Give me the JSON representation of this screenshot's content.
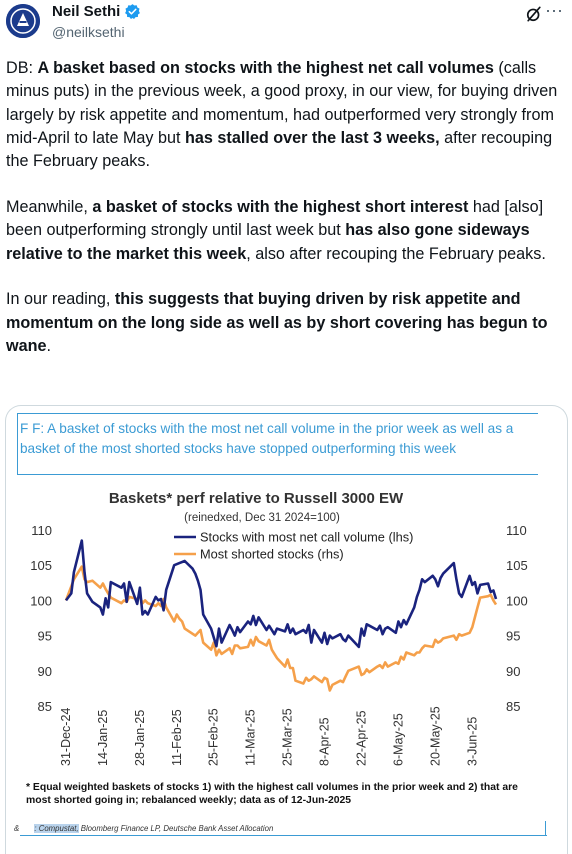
{
  "author": {
    "name": "Neil Sethi",
    "handle": "@neilksethi",
    "avatar_icon": "avatar-logo-icon",
    "verified_icon": "verified-badge-icon"
  },
  "tweet": {
    "p1": [
      {
        "t": "DB: ",
        "b": false
      },
      {
        "t": "A basket based on stocks with the highest net call volumes",
        "b": true
      },
      {
        "t": " (calls minus puts) in the previous week, a good proxy, in our view, for buying driven largely by risk appetite and momentum, had outperformed very strongly from mid-April to late May but ",
        "b": false
      },
      {
        "t": "has stalled over the last 3 weeks,",
        "b": true
      },
      {
        "t": " after recouping the February peaks.",
        "b": false
      }
    ],
    "p2": [
      {
        "t": "Meanwhile, ",
        "b": false
      },
      {
        "t": "a basket of stocks with the highest short interest",
        "b": true
      },
      {
        "t": " had [also] been outperforming strongly until last week but ",
        "b": false
      },
      {
        "t": "has also gone sideways relative to the market this week",
        "b": true
      },
      {
        "t": ", also after recouping the February peaks.",
        "b": false
      }
    ],
    "p3": [
      {
        "t": "In our reading, ",
        "b": false
      },
      {
        "t": "this suggests that buying driven by risk appetite and momentum on the long side as well as by short covering has begun to wane",
        "b": true
      },
      {
        "t": ".",
        "b": false
      }
    ]
  },
  "media": {
    "caption": "F        F: A basket of stocks with the most net call volume in the prior week as well as a basket of the most shorted stocks have stopped outperforming this week",
    "footnote": "* Equal weighted baskets of stocks 1) with the highest call volumes in the prior week and 2) that are most shorted going in; rebalanced weekly; data as of 12-Jun-2025",
    "source_prefix": "&",
    "source_highlight": ": Compustat,",
    "source_rest": " Bloomberg Finance LP, Deutsche Bank Asset Allocation"
  },
  "chart_data": {
    "type": "line",
    "title": "Baskets* perf relative to Russell 3000 EW",
    "subtitle": "(reinedxed, Dec 31 2024=100)",
    "ylim": [
      85,
      110
    ],
    "yticks": [
      85,
      90,
      95,
      100,
      105,
      110
    ],
    "x_tick_labels": [
      "31-Dec-24",
      "14-Jan-25",
      "28-Jan-25",
      "11-Feb-25",
      "25-Feb-25",
      "11-Mar-25",
      "25-Mar-25",
      "8-Apr-25",
      "22-Apr-25",
      "6-May-25",
      "20-May-25",
      "3-Jun-25"
    ],
    "grid": false,
    "legend_position": "top",
    "series": [
      {
        "name": "Stocks with most net call volume (lhs)",
        "axis": "left",
        "color": "#1a237e",
        "points": [
          [
            "2024-12-31",
            100
          ],
          [
            "2025-01-02",
            101
          ],
          [
            "2025-01-03",
            104
          ],
          [
            "2025-01-06",
            108.5
          ],
          [
            "2025-01-07",
            104
          ],
          [
            "2025-01-08",
            101
          ],
          [
            "2025-01-10",
            99.8
          ],
          [
            "2025-01-13",
            99
          ],
          [
            "2025-01-14",
            98
          ],
          [
            "2025-01-15",
            100.3
          ],
          [
            "2025-01-16",
            99
          ],
          [
            "2025-01-17",
            102.6
          ],
          [
            "2025-01-21",
            101.8
          ],
          [
            "2025-01-22",
            102.4
          ],
          [
            "2025-01-23",
            99.8
          ],
          [
            "2025-01-24",
            102.6
          ],
          [
            "2025-01-27",
            99.5
          ],
          [
            "2025-01-28",
            101.8
          ],
          [
            "2025-01-29",
            98
          ],
          [
            "2025-01-30",
            98.5
          ],
          [
            "2025-01-31",
            98
          ],
          [
            "2025-02-03",
            100.5
          ],
          [
            "2025-02-04",
            100
          ],
          [
            "2025-02-05",
            100.2
          ],
          [
            "2025-02-06",
            98.6
          ],
          [
            "2025-02-07",
            101.5
          ],
          [
            "2025-02-10",
            105
          ],
          [
            "2025-02-12",
            105.3
          ],
          [
            "2025-02-14",
            105.6
          ],
          [
            "2025-02-17",
            104.5
          ],
          [
            "2025-02-18",
            103.8
          ],
          [
            "2025-02-19",
            102.8
          ],
          [
            "2025-02-20",
            101.5
          ],
          [
            "2025-02-21",
            98
          ],
          [
            "2025-02-24",
            96
          ],
          [
            "2025-02-26",
            93.5
          ],
          [
            "2025-02-27",
            96
          ],
          [
            "2025-02-28",
            94
          ],
          [
            "2025-03-03",
            96.5
          ],
          [
            "2025-03-04",
            95.8
          ],
          [
            "2025-03-05",
            95
          ],
          [
            "2025-03-06",
            96.2
          ],
          [
            "2025-03-07",
            95.5
          ],
          [
            "2025-03-10",
            97
          ],
          [
            "2025-03-11",
            96.6
          ],
          [
            "2025-03-12",
            97.8
          ],
          [
            "2025-03-13",
            96.5
          ],
          [
            "2025-03-14",
            97.6
          ],
          [
            "2025-03-17",
            95.8
          ],
          [
            "2025-03-18",
            96.4
          ],
          [
            "2025-03-20",
            95.2
          ],
          [
            "2025-03-21",
            96
          ],
          [
            "2025-03-24",
            95.6
          ],
          [
            "2025-03-25",
            96.6
          ],
          [
            "2025-03-26",
            95.4
          ],
          [
            "2025-03-27",
            96
          ],
          [
            "2025-03-28",
            95.2
          ],
          [
            "2025-03-31",
            95.8
          ],
          [
            "2025-04-01",
            95.4
          ],
          [
            "2025-04-02",
            96.5
          ],
          [
            "2025-04-03",
            94
          ],
          [
            "2025-04-04",
            95.8
          ],
          [
            "2025-04-07",
            94
          ],
          [
            "2025-04-08",
            95.4
          ],
          [
            "2025-04-09",
            93.8
          ],
          [
            "2025-04-10",
            95
          ],
          [
            "2025-04-11",
            94.6
          ],
          [
            "2025-04-14",
            95.2
          ],
          [
            "2025-04-15",
            94.5
          ],
          [
            "2025-04-16",
            94.2
          ],
          [
            "2025-04-17",
            95
          ],
          [
            "2025-04-21",
            93.4
          ],
          [
            "2025-04-22",
            96
          ],
          [
            "2025-04-23",
            95
          ],
          [
            "2025-04-24",
            96.6
          ],
          [
            "2025-04-25",
            96.4
          ],
          [
            "2025-04-28",
            95.8
          ],
          [
            "2025-04-29",
            96.4
          ],
          [
            "2025-04-30",
            95.2
          ],
          [
            "2025-05-01",
            96
          ],
          [
            "2025-05-02",
            96.2
          ],
          [
            "2025-05-05",
            95.4
          ],
          [
            "2025-05-06",
            97
          ],
          [
            "2025-05-07",
            96.2
          ],
          [
            "2025-05-08",
            97.2
          ],
          [
            "2025-05-09",
            96.6
          ],
          [
            "2025-05-12",
            99
          ],
          [
            "2025-05-13",
            100.5
          ],
          [
            "2025-05-14",
            101.5
          ],
          [
            "2025-05-15",
            103
          ],
          [
            "2025-05-16",
            102.6
          ],
          [
            "2025-05-19",
            103.5
          ],
          [
            "2025-05-20",
            103
          ],
          [
            "2025-05-21",
            102
          ],
          [
            "2025-05-22",
            103.2
          ],
          [
            "2025-05-23",
            103.8
          ],
          [
            "2025-05-27",
            105.3
          ],
          [
            "2025-05-28",
            103
          ],
          [
            "2025-05-29",
            101
          ],
          [
            "2025-05-30",
            100.5
          ],
          [
            "2025-06-02",
            103.5
          ],
          [
            "2025-06-03",
            102.2
          ],
          [
            "2025-06-04",
            102.6
          ],
          [
            "2025-06-05",
            101
          ],
          [
            "2025-06-06",
            102.2
          ],
          [
            "2025-06-09",
            102.4
          ],
          [
            "2025-06-10",
            101.2
          ],
          [
            "2025-06-11",
            101.4
          ],
          [
            "2025-06-12",
            100.2
          ]
        ]
      },
      {
        "name": "Most shorted stocks (rhs)",
        "axis": "right",
        "color": "#f5a04a",
        "points": [
          [
            "2024-12-31",
            100
          ],
          [
            "2025-01-02",
            102
          ],
          [
            "2025-01-03",
            103
          ],
          [
            "2025-01-06",
            104.8
          ],
          [
            "2025-01-07",
            103
          ],
          [
            "2025-01-08",
            102.6
          ],
          [
            "2025-01-10",
            102.8
          ],
          [
            "2025-01-13",
            101.8
          ],
          [
            "2025-01-14",
            102.4
          ],
          [
            "2025-01-15",
            101.6
          ],
          [
            "2025-01-16",
            101
          ],
          [
            "2025-01-17",
            100.4
          ],
          [
            "2025-01-21",
            99.6
          ],
          [
            "2025-01-22",
            100
          ],
          [
            "2025-01-23",
            99.8
          ],
          [
            "2025-01-24",
            100.5
          ],
          [
            "2025-01-27",
            100.2
          ],
          [
            "2025-01-28",
            100.6
          ],
          [
            "2025-01-29",
            99.6
          ],
          [
            "2025-01-30",
            100
          ],
          [
            "2025-01-31",
            99.6
          ],
          [
            "2025-02-03",
            99.2
          ],
          [
            "2025-02-04",
            99.6
          ],
          [
            "2025-02-05",
            99.2
          ],
          [
            "2025-02-06",
            100.2
          ],
          [
            "2025-02-07",
            99
          ],
          [
            "2025-02-10",
            97
          ],
          [
            "2025-02-11",
            98
          ],
          [
            "2025-02-12",
            97.4
          ],
          [
            "2025-02-13",
            97
          ],
          [
            "2025-02-14",
            96
          ],
          [
            "2025-02-18",
            95
          ],
          [
            "2025-02-19",
            95.4
          ],
          [
            "2025-02-20",
            95.8
          ],
          [
            "2025-02-21",
            94
          ],
          [
            "2025-02-24",
            93
          ],
          [
            "2025-02-25",
            94
          ],
          [
            "2025-02-26",
            92.2
          ],
          [
            "2025-02-27",
            93
          ],
          [
            "2025-02-28",
            92.4
          ],
          [
            "2025-03-03",
            93.2
          ],
          [
            "2025-03-04",
            92.4
          ],
          [
            "2025-03-05",
            93.6
          ],
          [
            "2025-03-06",
            93.6
          ],
          [
            "2025-03-07",
            93.2
          ],
          [
            "2025-03-10",
            93.4
          ],
          [
            "2025-03-11",
            94.4
          ],
          [
            "2025-03-12",
            93.6
          ],
          [
            "2025-03-13",
            94.8
          ],
          [
            "2025-03-14",
            94.2
          ],
          [
            "2025-03-17",
            93.6
          ],
          [
            "2025-03-18",
            94.4
          ],
          [
            "2025-03-19",
            93
          ],
          [
            "2025-03-20",
            92.4
          ],
          [
            "2025-03-21",
            91.8
          ],
          [
            "2025-03-24",
            90.6
          ],
          [
            "2025-03-25",
            91.6
          ],
          [
            "2025-03-26",
            90.4
          ],
          [
            "2025-03-27",
            90.4
          ],
          [
            "2025-03-28",
            88.6
          ],
          [
            "2025-03-31",
            88.2
          ],
          [
            "2025-04-01",
            89
          ],
          [
            "2025-04-02",
            88.6
          ],
          [
            "2025-04-03",
            88.8
          ],
          [
            "2025-04-04",
            89.2
          ],
          [
            "2025-04-07",
            88.4
          ],
          [
            "2025-04-08",
            89
          ],
          [
            "2025-04-09",
            88.8
          ],
          [
            "2025-04-10",
            87.2
          ],
          [
            "2025-04-11",
            88
          ],
          [
            "2025-04-14",
            88.6
          ],
          [
            "2025-04-15",
            88.4
          ],
          [
            "2025-04-16",
            89.2
          ],
          [
            "2025-04-17",
            90
          ],
          [
            "2025-04-21",
            90.6
          ],
          [
            "2025-04-22",
            89.4
          ],
          [
            "2025-04-23",
            89.6
          ],
          [
            "2025-04-24",
            90.2
          ],
          [
            "2025-04-25",
            89.8
          ],
          [
            "2025-04-28",
            90.6
          ],
          [
            "2025-04-29",
            90.8
          ],
          [
            "2025-04-30",
            90.4
          ],
          [
            "2025-05-01",
            91.2
          ],
          [
            "2025-05-02",
            90.6
          ],
          [
            "2025-05-05",
            91.2
          ],
          [
            "2025-05-06",
            91
          ],
          [
            "2025-05-07",
            92
          ],
          [
            "2025-05-08",
            91.6
          ],
          [
            "2025-05-09",
            92.6
          ],
          [
            "2025-05-12",
            92.2
          ],
          [
            "2025-05-13",
            92.6
          ],
          [
            "2025-05-14",
            92.6
          ],
          [
            "2025-05-15",
            93.2
          ],
          [
            "2025-05-16",
            93.6
          ],
          [
            "2025-05-19",
            93.4
          ],
          [
            "2025-05-20",
            94.4
          ],
          [
            "2025-05-21",
            94
          ],
          [
            "2025-05-22",
            94.2
          ],
          [
            "2025-05-23",
            94.6
          ],
          [
            "2025-05-27",
            95
          ],
          [
            "2025-05-28",
            94.4
          ],
          [
            "2025-05-29",
            95.2
          ],
          [
            "2025-05-30",
            95
          ],
          [
            "2025-06-02",
            95.4
          ],
          [
            "2025-06-03",
            96.2
          ],
          [
            "2025-06-04",
            97.6
          ],
          [
            "2025-06-05",
            99
          ],
          [
            "2025-06-06",
            100.4
          ],
          [
            "2025-06-09",
            100.6
          ],
          [
            "2025-06-10",
            100.8
          ],
          [
            "2025-06-11",
            100
          ],
          [
            "2025-06-12",
            99.4
          ]
        ]
      }
    ]
  },
  "colors": {
    "text": "#0f1419",
    "muted": "#536471",
    "caption_blue": "#3b9bd4",
    "verified_blue": "#1d9bf0"
  }
}
